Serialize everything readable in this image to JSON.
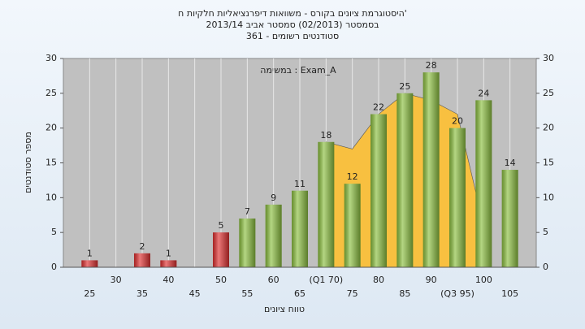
{
  "chart_data": {
    "type": "bar",
    "title": "היסטוגרמת ציונים בקורס - משוואות דיפרנציאליות חלקיות ח'",
    "subtitle": [
      "בסמסטר (02/2013) סמסטר אביב 2013/14",
      "סטודנטים רשומים - 361"
    ],
    "annotation": "במשימה : Exam_A",
    "x_label": "טווח ציונים",
    "y_label": "מספר סטודנטים",
    "categories": [
      "25",
      "30",
      "35",
      "40",
      "45",
      "50",
      "55",
      "60",
      "65",
      "(Q1 70)",
      "75",
      "80",
      "85",
      "90",
      "(Q3 95)",
      "100",
      "105"
    ],
    "values": [
      1,
      null,
      2,
      1,
      null,
      5,
      7,
      9,
      11,
      18,
      12,
      22,
      25,
      28,
      20,
      24,
      14
    ],
    "colors": [
      "#e03030",
      null,
      "#e03030",
      "#e03030",
      null,
      "#e03030",
      "#8cc040",
      "#8cc040",
      "#8cc040",
      "#8cc040",
      "#8cc040",
      "#8cc040",
      "#8cc040",
      "#8cc040",
      "#8cc040",
      "#8cc040",
      "#8cc040"
    ],
    "area": {
      "color": "#f8c040",
      "values": [
        null,
        null,
        null,
        null,
        null,
        null,
        null,
        null,
        null,
        18,
        17,
        22,
        25,
        24,
        22,
        6,
        null
      ]
    },
    "ylim": [
      0,
      30
    ],
    "yticks": [
      0,
      5,
      10,
      15,
      20,
      25,
      30
    ],
    "y2lim": [
      0,
      30
    ],
    "y2ticks": [
      0,
      5,
      10,
      15,
      20,
      25,
      30
    ],
    "grid": true
  }
}
